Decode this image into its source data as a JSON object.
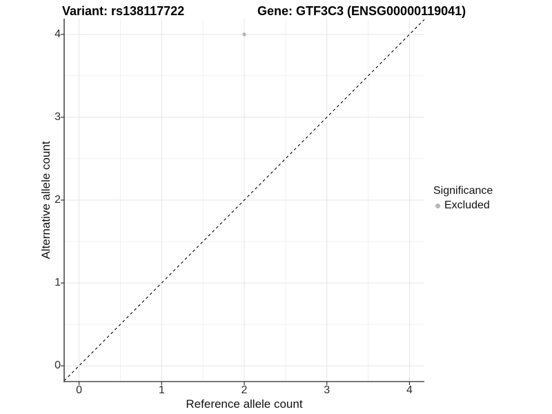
{
  "chart_data": {
    "type": "scatter",
    "title_left": "Variant: rs138117722",
    "title_right": "Gene: GTF3C3 (ENSG00000119041)",
    "xlabel": "Reference allele count",
    "ylabel": "Alternative allele count",
    "xlim": [
      -0.18,
      4.18
    ],
    "ylim": [
      -0.19,
      4.19
    ],
    "x_ticks": [
      0,
      1,
      2,
      3,
      4
    ],
    "y_ticks": [
      0,
      1,
      2,
      3,
      4
    ],
    "x_minor_ticks": [
      0.5,
      1.5,
      2.5,
      3.5
    ],
    "y_minor_ticks": [
      0.5,
      1.5,
      2.5,
      3.5
    ],
    "grid": true,
    "series": [
      {
        "name": "Excluded",
        "color": "#b7b7b7",
        "points": [
          {
            "x": 2,
            "y": 4
          }
        ]
      }
    ],
    "reference_line": {
      "kind": "identity",
      "slope": 1,
      "intercept": 0,
      "style": "dashed",
      "color": "#000000"
    },
    "legend": {
      "title": "Significance",
      "position": "right",
      "items": [
        {
          "label": "Excluded",
          "color": "#b7b7b7"
        }
      ]
    },
    "colors": {
      "background": "#ffffff",
      "grid_major": "#e5e5e5",
      "grid_minor": "#f0f0f0",
      "axis_line": "#4a4a4a",
      "tick_mark": "#333333"
    }
  }
}
